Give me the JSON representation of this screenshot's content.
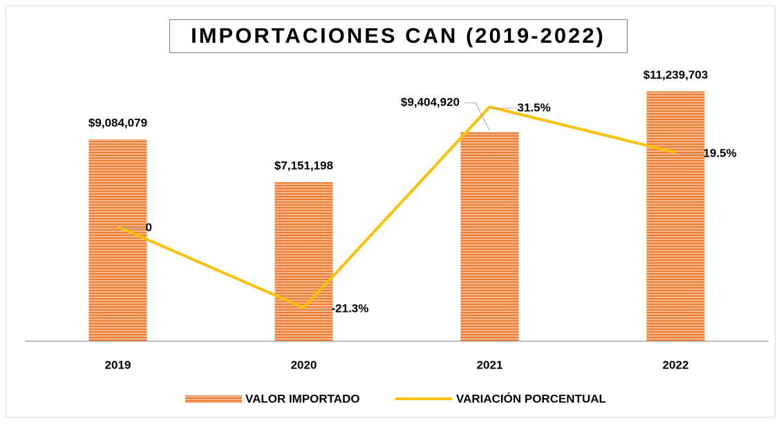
{
  "chart_data": {
    "type": "bar-line",
    "title": "IMPORTACIONES CAN (2019-2022)",
    "categories": [
      "2019",
      "2020",
      "2021",
      "2022"
    ],
    "series": [
      {
        "name": "VALOR IMPORTADO",
        "color": "#ed7d31",
        "type": "bar",
        "values": [
          9084079,
          7151198,
          9404920,
          11239703
        ],
        "value_labels": [
          "$9,084,079",
          "$7,151,198",
          "$9,404,920",
          "$11,239,703"
        ]
      },
      {
        "name": "VARIACIÓN PORCENTUAL",
        "color": "#ffc000",
        "type": "line",
        "axis": "y2",
        "values": [
          0,
          -21.3,
          31.5,
          19.5
        ],
        "value_labels": [
          "0",
          "-21.3%",
          "31.5%",
          "19.5%"
        ]
      }
    ],
    "ylim": [
      0,
      12000000
    ],
    "y2lim": [
      -30,
      40
    ],
    "legend": "bottom"
  }
}
